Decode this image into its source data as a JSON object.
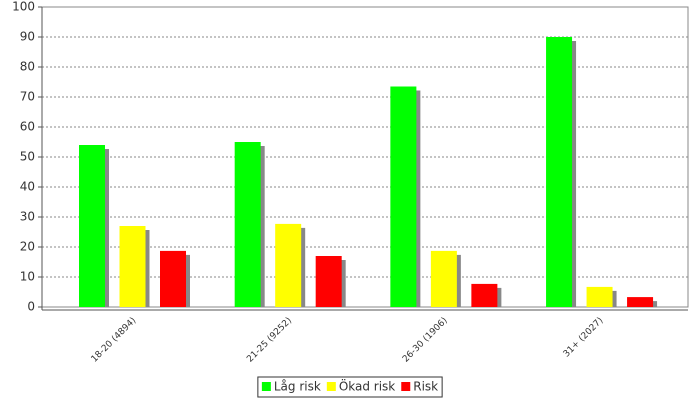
{
  "chart_data": {
    "type": "bar",
    "categories": [
      "18-20 (4894)",
      "21-25 (9252)",
      "26-30 (1906)",
      "31+ (2027)"
    ],
    "series": [
      {
        "name": "Låg risk",
        "color": "#00ff00",
        "values": [
          54,
          55,
          73.5,
          90
        ]
      },
      {
        "name": "Ökad risk",
        "color": "#ffff00",
        "values": [
          27,
          27.7,
          18.7,
          6.7
        ]
      },
      {
        "name": "Risk",
        "color": "#ff0000",
        "values": [
          18.7,
          17,
          7.7,
          3.3
        ]
      }
    ],
    "ylim": [
      0,
      100
    ],
    "yticks": [
      0,
      10,
      20,
      30,
      40,
      50,
      60,
      70,
      80,
      90,
      100
    ],
    "grid": true,
    "legend": "bottom"
  }
}
